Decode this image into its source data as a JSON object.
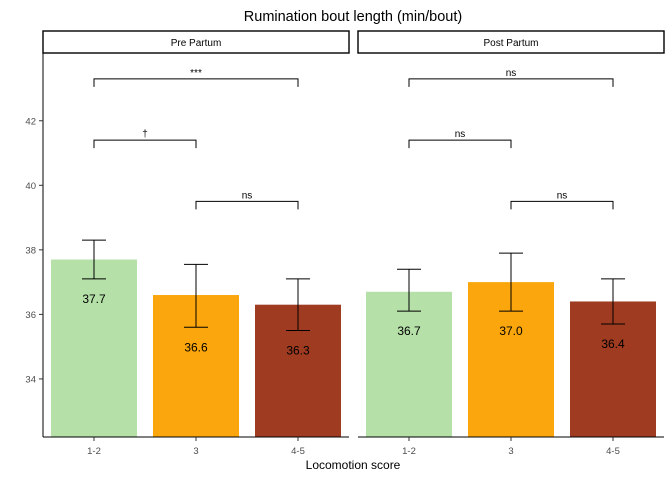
{
  "chart_data": {
    "type": "bar",
    "title": "Rumination bout length (min/bout)",
    "xlabel": "Locomotion score",
    "ylabel": "",
    "ylim": [
      32.2,
      44.1
    ],
    "yticks": [
      34,
      36,
      38,
      40,
      42
    ],
    "categories": [
      "1-2",
      "3",
      "4-5"
    ],
    "colors": [
      "#b5e0a8",
      "#fba60c",
      "#9e3b20"
    ],
    "grid": false,
    "legend": "none",
    "panels": [
      {
        "name": "Pre Partum",
        "values": [
          37.7,
          36.6,
          36.3
        ],
        "labels": [
          "37.7",
          "36.6",
          "36.3"
        ],
        "error_low": [
          37.1,
          35.6,
          35.5
        ],
        "error_high": [
          38.3,
          37.55,
          37.1
        ],
        "comparisons": [
          {
            "from": 0,
            "to": 2,
            "y": 43.3,
            "label": "***"
          },
          {
            "from": 0,
            "to": 1,
            "y": 41.4,
            "label": "†"
          },
          {
            "from": 1,
            "to": 2,
            "y": 39.5,
            "label": "ns"
          }
        ]
      },
      {
        "name": "Post Partum",
        "values": [
          36.7,
          37.0,
          36.4
        ],
        "labels": [
          "36.7",
          "37.0",
          "36.4"
        ],
        "error_low": [
          36.1,
          36.1,
          35.7
        ],
        "error_high": [
          37.4,
          37.9,
          37.1
        ],
        "comparisons": [
          {
            "from": 0,
            "to": 2,
            "y": 43.3,
            "label": "ns"
          },
          {
            "from": 0,
            "to": 1,
            "y": 41.4,
            "label": "ns"
          },
          {
            "from": 1,
            "to": 2,
            "y": 39.5,
            "label": "ns"
          }
        ]
      }
    ]
  }
}
